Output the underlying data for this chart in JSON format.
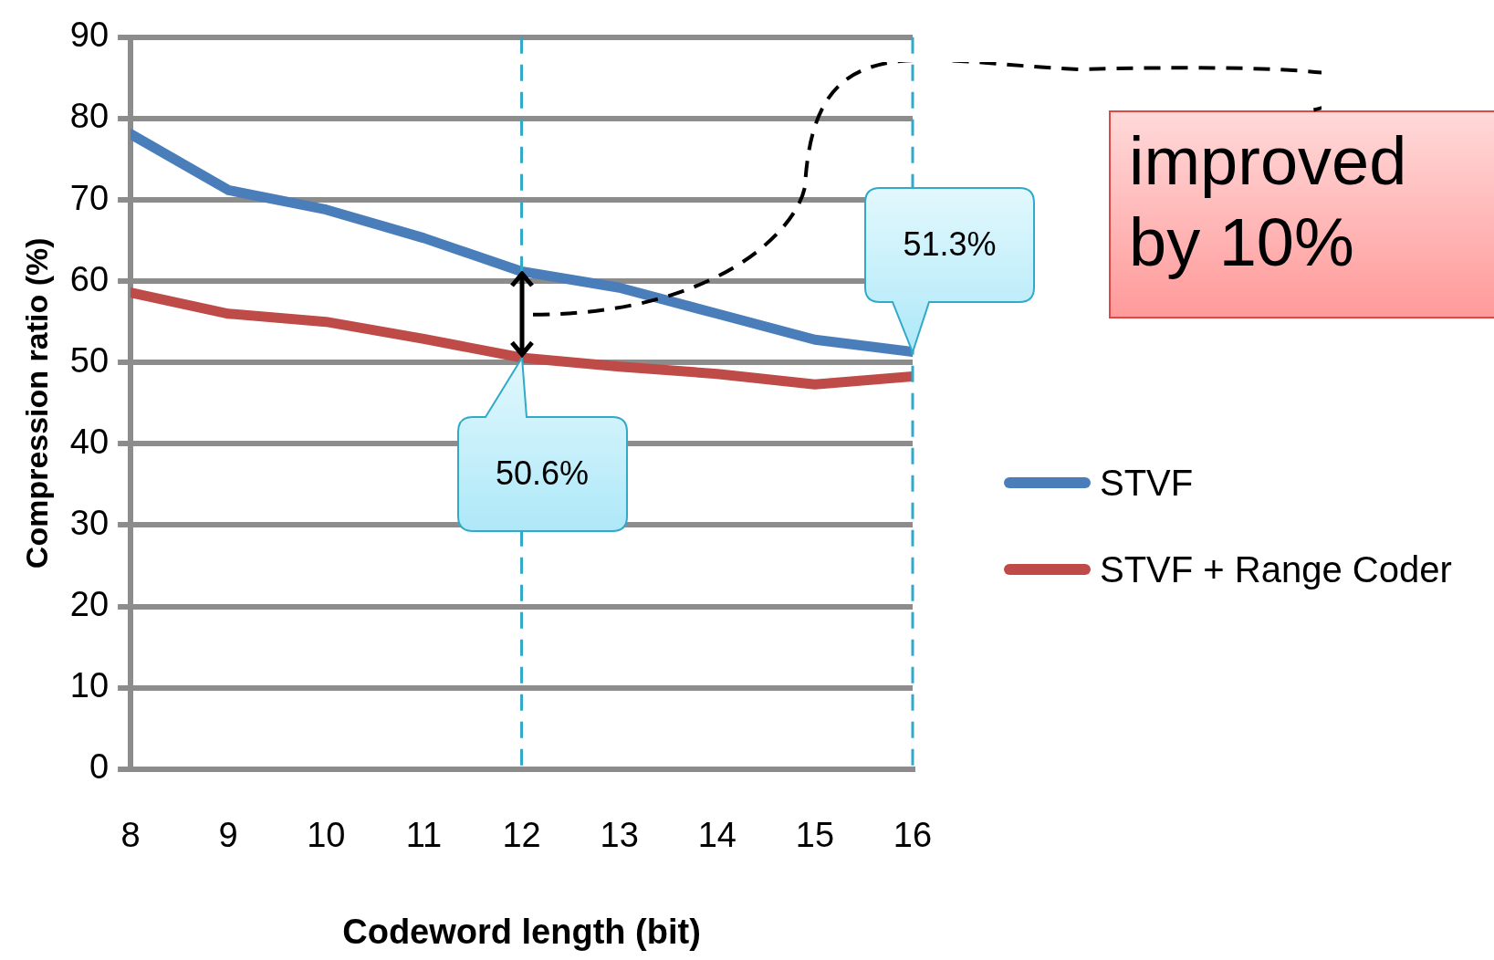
{
  "chart_data": {
    "type": "line",
    "xlabel": "Codeword length (bit)",
    "ylabel": "Compression ratio (%)",
    "x": [
      8,
      9,
      10,
      11,
      12,
      13,
      14,
      15,
      16
    ],
    "xlim": [
      8,
      16
    ],
    "xticks": [
      8,
      9,
      10,
      11,
      12,
      13,
      14,
      15,
      16
    ],
    "ylim": [
      0,
      90
    ],
    "yticks": [
      0,
      10,
      20,
      30,
      40,
      50,
      60,
      70,
      80,
      90
    ],
    "series": [
      {
        "name": "STVF",
        "color": "#4a7ebb",
        "values": [
          78.1,
          71.2,
          68.8,
          65.3,
          61.2,
          59.2,
          56.0,
          52.8,
          51.3
        ]
      },
      {
        "name": "STVF + Range Coder",
        "color": "#be4b48",
        "values": [
          58.6,
          56.0,
          55.0,
          52.9,
          50.6,
          49.5,
          48.6,
          47.3,
          48.3
        ]
      }
    ],
    "ref_lines": [
      {
        "axis": "x",
        "value": 12,
        "color": "#31a9c9",
        "line_style": "dashed"
      },
      {
        "axis": "x",
        "value": 16,
        "color": "#31a9c9",
        "line_style": "dashed"
      }
    ],
    "annotations": [
      {
        "text": "50.6%",
        "x": 12,
        "y": 50.6
      },
      {
        "text": "51.3%",
        "x": 16,
        "y": 51.3
      },
      "improved by 10%"
    ],
    "grid": "y",
    "legend": "right",
    "marker": "none",
    "line_style": "solid"
  }
}
